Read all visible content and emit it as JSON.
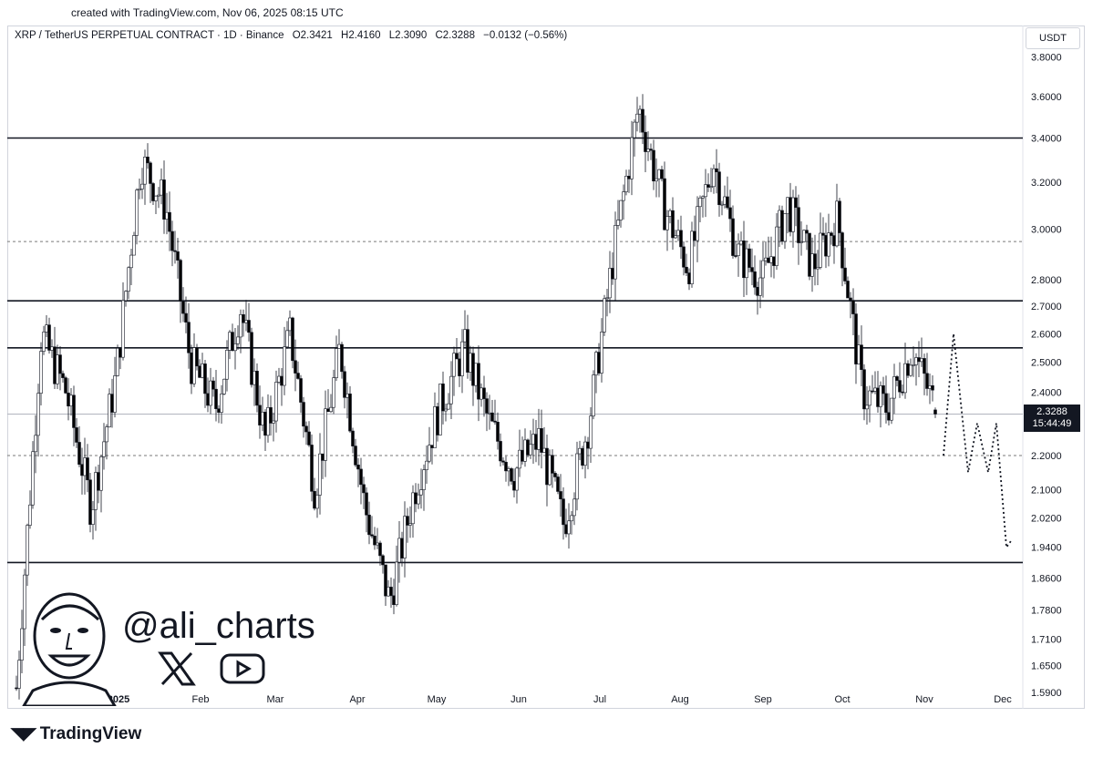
{
  "header": {
    "created_line": "created with TradingView.com, Nov 06, 2025 08:15 UTC"
  },
  "legend": {
    "symbol": "XRP / TetherUS PERPETUAL CONTRACT · 1D · Binance",
    "open": "O2.3421",
    "high": "H2.4160",
    "low": "L2.3090",
    "close": "C2.3288",
    "change": "−0.0132 (−0.56%)"
  },
  "unit_label": "USDT",
  "price_tag": {
    "price": "2.3288",
    "countdown": "15:44:49"
  },
  "watermark": {
    "handle": "@ali_charts",
    "x_icon": "x-logo-icon",
    "youtube_icon": "youtube-icon"
  },
  "brand": {
    "name": "TradingView",
    "icon": "tradingview-logo-icon"
  },
  "colors": {
    "up": "#ffffff",
    "down": "#000000",
    "line": "#131722",
    "grid_dashed": "#7a7a7a"
  },
  "chart_data": {
    "type": "candlestick",
    "scale": "log",
    "ylim": [
      1.59,
      3.85
    ],
    "y_ticks": [
      "3.8000",
      "3.6000",
      "3.4000",
      "3.2000",
      "3.0000",
      "2.8000",
      "2.7000",
      "2.6000",
      "2.5000",
      "2.4000",
      "2.3000",
      "2.2000",
      "2.1000",
      "2.0200",
      "1.9400",
      "1.8600",
      "1.7800",
      "1.7100",
      "1.6500",
      "1.5900"
    ],
    "x_ticks": [
      "Dec",
      "2025",
      "Feb",
      "Mar",
      "Apr",
      "May",
      "Jun",
      "Jul",
      "Aug",
      "Sep",
      "Oct",
      "Nov",
      "Dec"
    ],
    "horizontal_levels": [
      {
        "price": 3.4,
        "style": "solid"
      },
      {
        "price": 2.95,
        "style": "dashed"
      },
      {
        "price": 2.72,
        "style": "solid"
      },
      {
        "price": 2.55,
        "style": "solid"
      },
      {
        "price": 2.2,
        "style": "dashed"
      },
      {
        "price": 1.9,
        "style": "solid"
      }
    ],
    "anchors": [
      [
        "Dec",
        1.6
      ],
      [
        "Dec",
        2.6
      ],
      [
        "2025",
        2.4
      ],
      [
        "2025",
        2.05
      ],
      [
        "2025",
        2.45
      ],
      [
        "2025",
        3.3
      ],
      [
        "Feb",
        3.1
      ],
      [
        "Feb",
        2.5
      ],
      [
        "Feb",
        2.35
      ],
      [
        "Mar",
        2.7
      ],
      [
        "Mar",
        2.25
      ],
      [
        "Mar",
        2.6
      ],
      [
        "Mar",
        2.1
      ],
      [
        "Apr",
        2.55
      ],
      [
        "Apr",
        2.05
      ],
      [
        "Apr",
        1.8
      ],
      [
        "Apr",
        2.1
      ],
      [
        "May",
        2.35
      ],
      [
        "May",
        2.55
      ],
      [
        "May",
        2.3
      ],
      [
        "Jun",
        2.15
      ],
      [
        "Jun",
        2.25
      ],
      [
        "Jun",
        2.0
      ],
      [
        "Jul",
        2.3
      ],
      [
        "Jul",
        2.9
      ],
      [
        "Jul",
        3.55
      ],
      [
        "Aug",
        3.1
      ],
      [
        "Aug",
        2.85
      ],
      [
        "Aug",
        3.3
      ],
      [
        "Aug",
        2.9
      ],
      [
        "Sep",
        2.8
      ],
      [
        "Sep",
        3.1
      ],
      [
        "Sep",
        2.85
      ],
      [
        "Oct",
        3.05
      ],
      [
        "Oct",
        2.4
      ],
      [
        "Oct",
        2.35
      ],
      [
        "Nov",
        2.55
      ],
      [
        "Nov",
        2.33
      ]
    ],
    "projection": [
      [
        "Nov",
        2.2
      ],
      [
        "Nov",
        2.6
      ],
      [
        "Nov",
        2.15
      ],
      [
        "Nov",
        2.3
      ],
      [
        "Nov",
        2.15
      ],
      [
        "Nov",
        2.3
      ],
      [
        "Dec",
        1.94
      ],
      [
        "Dec",
        1.96
      ]
    ],
    "last": {
      "open": 2.3421,
      "high": 2.416,
      "low": 2.309,
      "close": 2.3288
    }
  }
}
